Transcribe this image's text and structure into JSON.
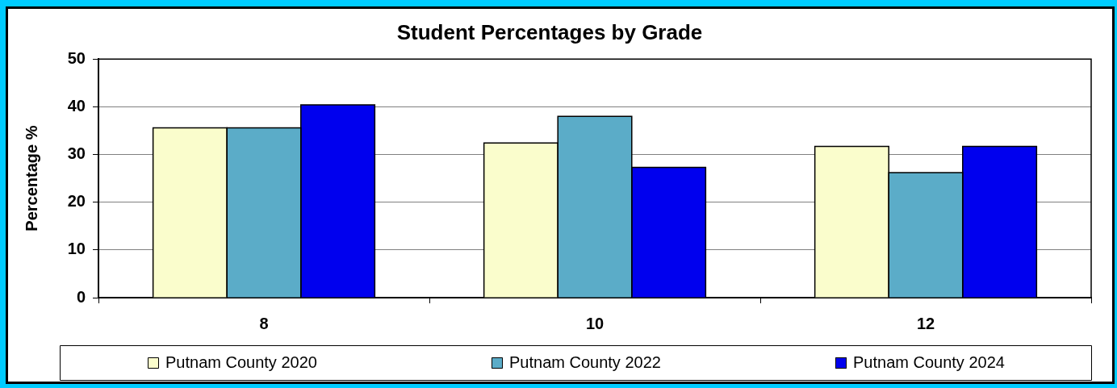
{
  "chart_data": {
    "type": "bar",
    "title": "Student Percentages by Grade",
    "ylabel": "Percentage %",
    "categories": [
      "8",
      "10",
      "12"
    ],
    "series": [
      {
        "name": "Putnam County 2020",
        "color": "#fafdcc",
        "values": [
          35.6,
          32.4,
          31.7
        ]
      },
      {
        "name": "Putnam County 2022",
        "color": "#5bacc8",
        "values": [
          35.6,
          38.0,
          26.2
        ]
      },
      {
        "name": "Putnam County 2024",
        "color": "#0000ee",
        "values": [
          40.4,
          27.3,
          31.7
        ]
      }
    ],
    "ylim": [
      0,
      50
    ],
    "yticks": [
      0,
      10,
      20,
      30,
      40,
      50
    ],
    "grid": "y",
    "legend": "bottom"
  }
}
